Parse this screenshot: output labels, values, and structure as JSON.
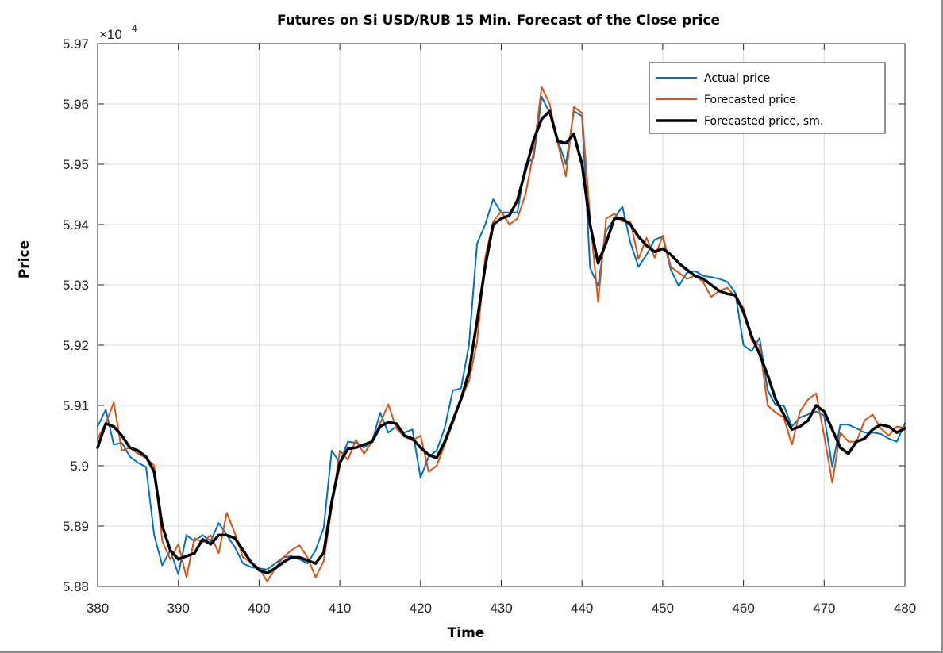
{
  "chart_data": {
    "type": "line",
    "title": "Futures on Si USD/RUB 15 Min. Forecast of the Close price",
    "xlabel": "Time",
    "ylabel": "Price",
    "exponent_label": "×10",
    "exponent_power": "4",
    "xlim": [
      380,
      480
    ],
    "ylim": [
      58800,
      59700
    ],
    "xticks": [
      380,
      390,
      400,
      410,
      420,
      430,
      440,
      450,
      460,
      470,
      480
    ],
    "xtick_labels": [
      "380",
      "390",
      "400",
      "410",
      "420",
      "430",
      "440",
      "450",
      "460",
      "470",
      "480"
    ],
    "yticks": [
      58800,
      58900,
      59000,
      59100,
      59200,
      59300,
      59400,
      59500,
      59600,
      59700
    ],
    "ytick_labels": [
      "5.88",
      "5.89",
      "5.9",
      "5.91",
      "5.92",
      "5.93",
      "5.94",
      "5.95",
      "5.96",
      "5.97"
    ],
    "grid": true,
    "legend_position": "top-right",
    "x": [
      380,
      381,
      382,
      383,
      384,
      385,
      386,
      387,
      388,
      389,
      390,
      391,
      392,
      393,
      394,
      395,
      396,
      397,
      398,
      399,
      400,
      401,
      402,
      403,
      404,
      405,
      406,
      407,
      408,
      409,
      410,
      411,
      412,
      413,
      414,
      415,
      416,
      417,
      418,
      419,
      420,
      421,
      422,
      423,
      424,
      425,
      426,
      427,
      428,
      429,
      430,
      431,
      432,
      433,
      434,
      435,
      436,
      437,
      438,
      439,
      440,
      441,
      442,
      443,
      444,
      445,
      446,
      447,
      448,
      449,
      450,
      451,
      452,
      453,
      454,
      455,
      456,
      457,
      458,
      459,
      460,
      461,
      462,
      463,
      464,
      465,
      466,
      467,
      468,
      469,
      470,
      471,
      472,
      473,
      474,
      475,
      476,
      477,
      478,
      479,
      480
    ],
    "series": [
      {
        "name": "Actual price",
        "color": "#0072bd",
        "width": 2,
        "values": [
          59065,
          59093,
          59035,
          59038,
          59015,
          59005,
          58998,
          58885,
          58835,
          58860,
          58820,
          58885,
          58875,
          58885,
          58875,
          58905,
          58885,
          58865,
          58838,
          58832,
          58830,
          58828,
          58838,
          58848,
          58850,
          58845,
          58838,
          58860,
          58897,
          59025,
          59005,
          59040,
          59038,
          59030,
          59040,
          59088,
          59055,
          59065,
          59055,
          59060,
          58980,
          59015,
          59025,
          59063,
          59125,
          59128,
          59200,
          59368,
          59400,
          59442,
          59420,
          59420,
          59420,
          59500,
          59510,
          59612,
          59585,
          59540,
          59500,
          59588,
          59580,
          59328,
          59298,
          59390,
          59410,
          59430,
          59370,
          59330,
          59350,
          59375,
          59380,
          59325,
          59298,
          59320,
          59323,
          59315,
          59313,
          59310,
          59305,
          59287,
          59200,
          59190,
          59212,
          59125,
          59100,
          59100,
          59065,
          59080,
          59085,
          59090,
          59083,
          58998,
          59068,
          59068,
          59062,
          59055,
          59055,
          59053,
          59045,
          59040,
          59070
        ]
      },
      {
        "name": "Forecasted price",
        "color": "#d95319",
        "width": 2,
        "values": [
          59045,
          59070,
          59105,
          59025,
          59030,
          59020,
          59013,
          59000,
          58875,
          58845,
          58870,
          58815,
          58880,
          58873,
          58885,
          58855,
          58922,
          58888,
          58848,
          58840,
          58830,
          58808,
          58830,
          58848,
          58860,
          58868,
          58848,
          58815,
          58842,
          58930,
          59025,
          59010,
          59043,
          59020,
          59040,
          59070,
          59102,
          59062,
          59048,
          59042,
          59050,
          58990,
          59000,
          59035,
          59070,
          59110,
          59140,
          59205,
          59345,
          59405,
          59422,
          59400,
          59410,
          59450,
          59520,
          59628,
          59600,
          59535,
          59480,
          59595,
          59585,
          59410,
          59272,
          59410,
          59418,
          59405,
          59405,
          59343,
          59378,
          59345,
          59382,
          59330,
          59320,
          59310,
          59315,
          59305,
          59280,
          59290,
          59295,
          59280,
          59262,
          59208,
          59200,
          59100,
          59088,
          59080,
          59035,
          59090,
          59110,
          59120,
          59050,
          58972,
          59055,
          59040,
          59040,
          59075,
          59085,
          59062,
          59050,
          59065,
          59063
        ]
      },
      {
        "name": "Forecasted price, sm.",
        "color": "#000000",
        "width": 3.5,
        "values": [
          59030,
          59070,
          59065,
          59050,
          59030,
          59025,
          59015,
          58990,
          58900,
          58860,
          58845,
          58850,
          58855,
          58878,
          58870,
          58885,
          58885,
          58880,
          58860,
          58840,
          58827,
          58822,
          58830,
          58840,
          58848,
          58848,
          58843,
          58838,
          58856,
          58940,
          59005,
          59028,
          59030,
          59035,
          59040,
          59065,
          59072,
          59070,
          59050,
          59045,
          59030,
          59018,
          59013,
          59040,
          59075,
          59110,
          59155,
          59240,
          59330,
          59400,
          59410,
          59415,
          59440,
          59490,
          59540,
          59575,
          59588,
          59538,
          59535,
          59550,
          59500,
          59400,
          59336,
          59370,
          59410,
          59410,
          59400,
          59380,
          59365,
          59355,
          59360,
          59350,
          59336,
          59325,
          59315,
          59310,
          59300,
          59290,
          59285,
          59283,
          59255,
          59215,
          59185,
          59150,
          59110,
          59085,
          59060,
          59065,
          59075,
          59100,
          59090,
          59060,
          59030,
          59020,
          59040,
          59045,
          59060,
          59068,
          59065,
          59055,
          59062
        ]
      }
    ]
  }
}
